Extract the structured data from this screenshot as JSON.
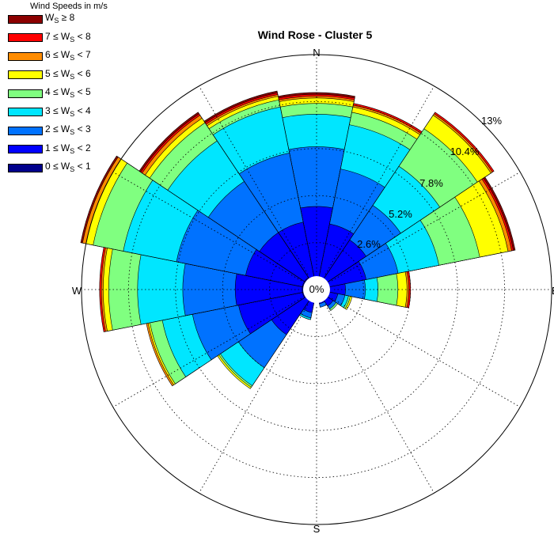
{
  "chart_data": {
    "type": "wind-rose",
    "title": "Wind Rose - Cluster 5",
    "legend_title": "Wind Speeds in m/s",
    "legend_position": "top-left",
    "cardinals": [
      "N",
      "E",
      "S",
      "W"
    ],
    "radial_max": 13,
    "radial_ticks": [
      2.6,
      5.2,
      7.8,
      10.4,
      13
    ],
    "radial_labels": [
      "2.6%",
      "5.2%",
      "7.8%",
      "10.4%",
      "13%"
    ],
    "center_label": "0%",
    "grid": true,
    "bins": [
      {
        "label_pre": "0 ≤ W",
        "sub": "S",
        "label_post": " < 1",
        "color": "#00008c"
      },
      {
        "label_pre": "1 ≤ W",
        "sub": "S",
        "label_post": " < 2",
        "color": "#0000ff"
      },
      {
        "label_pre": "2 ≤ W",
        "sub": "S",
        "label_post": " < 3",
        "color": "#0072ff"
      },
      {
        "label_pre": "3 ≤ W",
        "sub": "S",
        "label_post": " < 4",
        "color": "#00e6ff"
      },
      {
        "label_pre": "4 ≤ W",
        "sub": "S",
        "label_post": " < 5",
        "color": "#80ff80"
      },
      {
        "label_pre": "5 ≤ W",
        "sub": "S",
        "label_post": " < 6",
        "color": "#ffff00"
      },
      {
        "label_pre": "6 ≤ W",
        "sub": "S",
        "label_post": " < 7",
        "color": "#ff8c00"
      },
      {
        "label_pre": "7 ≤ W",
        "sub": "S",
        "label_post": " < 8",
        "color": "#ff0000"
      },
      {
        "label_pre": "W",
        "sub": "S",
        "label_post": " ≥ 8",
        "color": "#8c0000"
      }
    ],
    "directions_deg": [
      0,
      22.5,
      45,
      67.5,
      90,
      112.5,
      135,
      157.5,
      180,
      202.5,
      225,
      247.5,
      270,
      292.5,
      315,
      337.5
    ],
    "cumulative_percent": [
      [
        0.7,
        4.6,
        7.9,
        9.7,
        10.3,
        10.6,
        10.7,
        10.8,
        10.9
      ],
      [
        0.6,
        3.7,
        6.8,
        9.3,
        10.0,
        10.3,
        10.4,
        10.5,
        10.5
      ],
      [
        0.7,
        3.3,
        5.6,
        8.2,
        10.7,
        11.6,
        11.7,
        11.8,
        11.8
      ],
      [
        0.7,
        2.8,
        4.6,
        6.9,
        9.2,
        10.8,
        11.0,
        11.1,
        11.2
      ],
      [
        0.7,
        1.6,
        2.7,
        3.4,
        4.5,
        5.0,
        5.1,
        5.2,
        5.2
      ],
      [
        0.7,
        1.2,
        1.6,
        1.8,
        1.9,
        2.0,
        2.0,
        2.0,
        2.0
      ],
      [
        0.5,
        1.1,
        1.3,
        1.3,
        1.4,
        1.4,
        1.4,
        1.4,
        1.4
      ],
      [
        0.5,
        0.8,
        1.0,
        1.0,
        1.0,
        1.0,
        1.0,
        1.0,
        1.0
      ],
      [
        0.0,
        0.0,
        0.0,
        0.0,
        0.0,
        0.0,
        0.0,
        0.0,
        0.0
      ],
      [
        0.5,
        1.3,
        1.6,
        1.7,
        1.7,
        1.7,
        1.7,
        1.7,
        1.7
      ],
      [
        0.7,
        3.0,
        5.2,
        6.4,
        6.5,
        6.6,
        6.6,
        6.6,
        6.6
      ],
      [
        0.8,
        4.4,
        7.0,
        8.7,
        9.4,
        9.5,
        9.6,
        9.6,
        9.6
      ],
      [
        0.8,
        4.5,
        7.4,
        9.9,
        11.5,
        11.8,
        11.9,
        12.0,
        12.0
      ],
      [
        0.8,
        4.0,
        7.9,
        10.9,
        12.6,
        13.0,
        13.2,
        13.2,
        13.3
      ],
      [
        0.8,
        3.8,
        7.2,
        9.9,
        11.1,
        11.4,
        11.6,
        11.7,
        11.8
      ],
      [
        0.7,
        3.8,
        7.7,
        10.3,
        10.7,
        10.9,
        11.0,
        11.1,
        11.2
      ]
    ]
  }
}
